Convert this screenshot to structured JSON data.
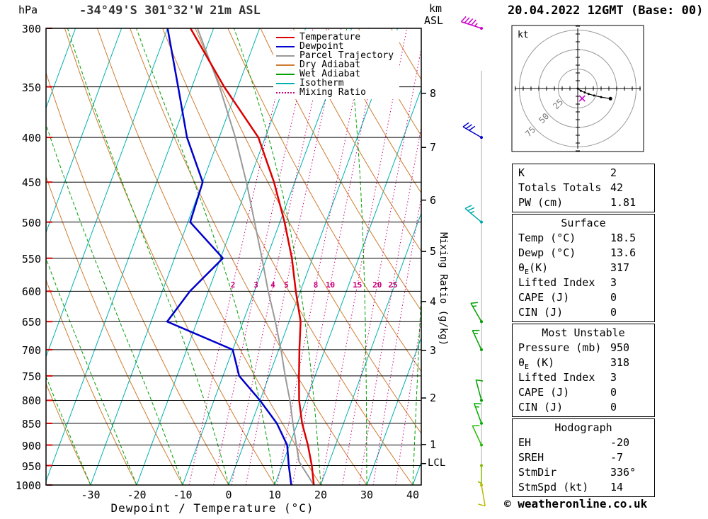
{
  "header": {
    "station_title": "-34°49'S 301°32'W 21m ASL",
    "date_title": "20.04.2022 12GMT (Base: 00)"
  },
  "footer": {
    "xlabel": "Dewpoint / Temperature (°C)",
    "copyright": "© weatheronline.co.uk"
  },
  "axes": {
    "pressure_unit": "hPa",
    "pressure_ticks": [
      300,
      350,
      400,
      450,
      500,
      550,
      600,
      650,
      700,
      750,
      800,
      850,
      900,
      950,
      1000
    ],
    "temp_ticks": [
      -30,
      -20,
      -10,
      0,
      10,
      20,
      30,
      40
    ],
    "km_label_top": "km",
    "km_label_bottom": "ASL",
    "km_ticks": [
      1,
      2,
      3,
      4,
      5,
      6,
      7,
      8
    ],
    "lcl_label": "LCL",
    "mixing_axis_label": "Mixing Ratio (g/kg)"
  },
  "legend": {
    "items": [
      {
        "label": "Temperature",
        "color": "#dd0000",
        "style": "solid"
      },
      {
        "label": "Dewpoint",
        "color": "#0000cc",
        "style": "solid"
      },
      {
        "label": "Parcel Trajectory",
        "color": "#999999",
        "style": "solid"
      },
      {
        "label": "Dry Adiabat",
        "color": "#cf7d33",
        "style": "solid"
      },
      {
        "label": "Wet Adiabat",
        "color": "#00a000",
        "style": "solid"
      },
      {
        "label": "Isotherm",
        "color": "#00b0b0",
        "style": "solid"
      },
      {
        "label": "Mixing Ratio",
        "color": "#cc0077",
        "style": "dotted"
      }
    ]
  },
  "chart_data": {
    "type": "skewt",
    "title": "-34°49'S 301°32'W 21m ASL",
    "pressure_range_hpa": [
      300,
      1000
    ],
    "temp_axis_range_c": [
      -39.7,
      41.8
    ],
    "skew": 0.37,
    "isotherms_c": {
      "min": -120,
      "max": 40,
      "step": 10
    },
    "dry_adiabats_c": {
      "min": -40,
      "max": 160,
      "step": 10
    },
    "wet_adiabats_c": {
      "min": -30,
      "max": 50,
      "step": 10
    },
    "mixing_ratio_label_values": [
      2,
      3,
      4,
      5,
      8,
      10,
      15,
      20,
      25
    ],
    "mixing_ratio_line_values": [
      2,
      3,
      4,
      5,
      8,
      10,
      15,
      20,
      25,
      30,
      40
    ],
    "mixing_label_pressure_hpa": 590,
    "lcl_pressure_hpa": 945,
    "sounding": {
      "pressure_hpa": [
        1000,
        950,
        900,
        850,
        800,
        750,
        700,
        650,
        600,
        550,
        500,
        450,
        400,
        350,
        300
      ],
      "temperature_c": [
        18.5,
        16.5,
        14,
        11,
        8.5,
        6.5,
        4.5,
        2.5,
        -1,
        -4.5,
        -9,
        -14.5,
        -21.5,
        -33,
        -45
      ],
      "dewpoint_c": [
        13.6,
        11.5,
        9.5,
        5.5,
        0,
        -6.5,
        -10,
        -26.5,
        -24,
        -19.5,
        -29.5,
        -30,
        -37,
        -43,
        -50
      ]
    },
    "parcel": {
      "pressure_hpa": [
        1000,
        940,
        900,
        850,
        800,
        750,
        700,
        650,
        600,
        550,
        500,
        450,
        400,
        350,
        300
      ],
      "temperature_c": [
        18.5,
        13.4,
        11.5,
        9,
        6.5,
        3.5,
        0.5,
        -3,
        -7,
        -11,
        -15.5,
        -20.5,
        -26.5,
        -34,
        -43.5
      ]
    },
    "wind_barbs": [
      {
        "pressure": 300,
        "dir": 288,
        "speed": 45,
        "color": "#cc00cc"
      },
      {
        "pressure": 400,
        "dir": 300,
        "speed": 30,
        "color": "#0000cc"
      },
      {
        "pressure": 500,
        "dir": 310,
        "speed": 25,
        "color": "#00aaaa"
      },
      {
        "pressure": 650,
        "dir": 330,
        "speed": 15,
        "color": "#00a000"
      },
      {
        "pressure": 700,
        "dir": 335,
        "speed": 15,
        "color": "#00a000"
      },
      {
        "pressure": 800,
        "dir": 345,
        "speed": 10,
        "color": "#00a000"
      },
      {
        "pressure": 850,
        "dir": 340,
        "speed": 15,
        "color": "#00b000"
      },
      {
        "pressure": 900,
        "dir": 335,
        "speed": 10,
        "color": "#22bb00"
      },
      {
        "pressure": 950,
        "dir": 180,
        "speed": 5,
        "color": "#88bb00"
      },
      {
        "pressure": 1000,
        "dir": 170,
        "speed": 10,
        "color": "#bbbb00"
      }
    ],
    "colors": {
      "temperature": "#dd0000",
      "dewpoint": "#0000cc",
      "parcel": "#999999",
      "dry_adiabat": "#cf7d33",
      "wet_adiabat": "#00a000",
      "isotherm": "#00b0b0",
      "mixing_ratio": "#cc0077",
      "grid": "#000000",
      "pressure_tick": "#dd0000"
    }
  },
  "hodograph": {
    "unit_label": "kt",
    "rings_kt": [
      25,
      50,
      75
    ],
    "ring_labels": [
      "25",
      "50",
      "75"
    ],
    "trace_kt": [
      [
        0,
        0
      ],
      [
        4,
        -3
      ],
      [
        9,
        -5
      ],
      [
        14,
        -7
      ],
      [
        21,
        -9
      ],
      [
        30,
        -11
      ],
      [
        42,
        -13
      ]
    ],
    "storm_motion_kt": [
      5.7,
      -12.8
    ]
  },
  "table": {
    "sections": [
      {
        "title": "",
        "rows": [
          {
            "label": "K",
            "value": "2"
          },
          {
            "label": "Totals Totals",
            "value": "42"
          },
          {
            "label": "PW (cm)",
            "value": "1.81"
          }
        ]
      },
      {
        "title": "Surface",
        "rows": [
          {
            "label": "Temp (°C)",
            "value": "18.5"
          },
          {
            "label": "Dewp (°C)",
            "value": "13.6"
          },
          {
            "label": "θE(K)",
            "value": "317"
          },
          {
            "label": "Lifted Index",
            "value": "3"
          },
          {
            "label": "CAPE (J)",
            "value": "0"
          },
          {
            "label": "CIN (J)",
            "value": "0"
          }
        ]
      },
      {
        "title": "Most Unstable",
        "rows": [
          {
            "label": "Pressure (mb)",
            "value": "950"
          },
          {
            "label": "θE (K)",
            "value": "318"
          },
          {
            "label": "Lifted Index",
            "value": "3"
          },
          {
            "label": "CAPE (J)",
            "value": "0"
          },
          {
            "label": "CIN (J)",
            "value": "0"
          }
        ]
      },
      {
        "title": "Hodograph",
        "rows": [
          {
            "label": "EH",
            "value": "-20"
          },
          {
            "label": "SREH",
            "value": "-7"
          },
          {
            "label": "StmDir",
            "value": "336°"
          },
          {
            "label": "StmSpd (kt)",
            "value": "14"
          }
        ]
      }
    ]
  }
}
